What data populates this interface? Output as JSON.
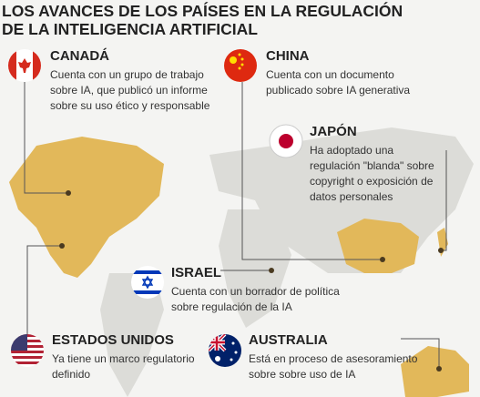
{
  "title": [
    "LOS AVANCES DE LOS PAÍSES EN LA REGULACIÓN",
    "DE LA INTELIGENCIA ARTIFICIAL"
  ],
  "countries": [
    {
      "name": "CANADÁ",
      "description": [
        "Cuenta con un grupo de trabajo",
        "sobre IA, que publicó un informe",
        "sobre su uso ético y responsable"
      ]
    },
    {
      "name": "CHINA",
      "description": [
        "Cuenta con un documento",
        "publicado sobre IA generativa"
      ]
    },
    {
      "name": "JAPÓN",
      "description": [
        "Ha adoptado una",
        "regulación \"blanda\" sobre",
        "copyright o exposición de",
        "datos personales"
      ]
    },
    {
      "name": "ISRAEL",
      "description": [
        "Cuenta con un borrador de política",
        "sobre regulación de la IA"
      ]
    },
    {
      "name": "ESTADOS UNIDOS",
      "description": [
        "Ya tiene un marco regulatorio",
        "definido"
      ]
    },
    {
      "name": "AUSTRALIA",
      "description": [
        "Está en proceso de asesoramiento",
        "sobre sobre uso de IA"
      ]
    }
  ]
}
